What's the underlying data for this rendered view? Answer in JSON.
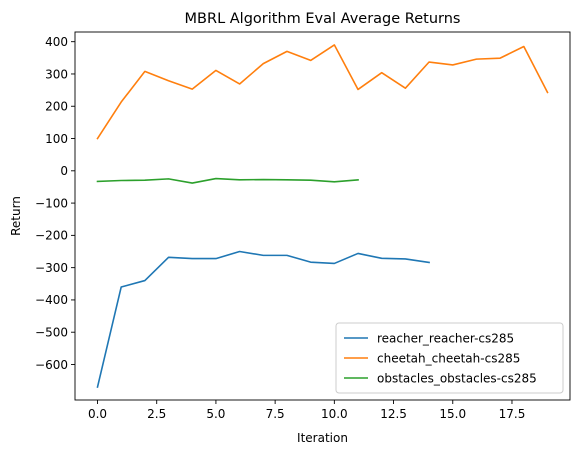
{
  "chart_data": {
    "type": "line",
    "title": "MBRL Algorithm Eval Average Returns",
    "xlabel": "Iteration",
    "ylabel": "Return",
    "xlim": [
      -0.95,
      19.95
    ],
    "ylim": [
      -710,
      430
    ],
    "xticks": [
      0.0,
      2.5,
      5.0,
      7.5,
      10.0,
      12.5,
      15.0,
      17.5
    ],
    "xtick_labels": [
      "0.0",
      "2.5",
      "5.0",
      "7.5",
      "10.0",
      "12.5",
      "15.0",
      "17.5"
    ],
    "yticks": [
      -600,
      -500,
      -400,
      -300,
      -200,
      -100,
      0,
      100,
      200,
      300,
      400
    ],
    "ytick_labels": [
      "−600",
      "−500",
      "−400",
      "−300",
      "−200",
      "−100",
      "0",
      "100",
      "200",
      "300",
      "400"
    ],
    "grid": false,
    "legend_position": "lower-right",
    "series": [
      {
        "name": "reacher_reacher-cs285",
        "color": "#1f77b4",
        "x": [
          0,
          1,
          2,
          3,
          4,
          5,
          6,
          7,
          8,
          9,
          10,
          11,
          12,
          13,
          14
        ],
        "values": [
          -670,
          -360,
          -340,
          -268,
          -272,
          -272,
          -250,
          -262,
          -262,
          -283,
          -287,
          -256,
          -271,
          -273,
          -284
        ]
      },
      {
        "name": "cheetah_cheetah-cs285",
        "color": "#ff7f0e",
        "x": [
          0,
          1,
          2,
          3,
          4,
          5,
          6,
          7,
          8,
          9,
          10,
          11,
          12,
          13,
          14,
          15,
          16,
          17,
          18,
          19
        ],
        "values": [
          100,
          213,
          308,
          279,
          253,
          311,
          269,
          332,
          370,
          342,
          390,
          252,
          304,
          256,
          337,
          328,
          346,
          349,
          385,
          243
        ]
      },
      {
        "name": "obstacles_obstacles-cs285",
        "color": "#2ca02c",
        "x": [
          0,
          1,
          2,
          3,
          4,
          5,
          6,
          7,
          8,
          9,
          10,
          11
        ],
        "values": [
          -33,
          -30,
          -29,
          -25,
          -38,
          -24,
          -28,
          -27,
          -28,
          -29,
          -34,
          -28
        ]
      }
    ]
  }
}
